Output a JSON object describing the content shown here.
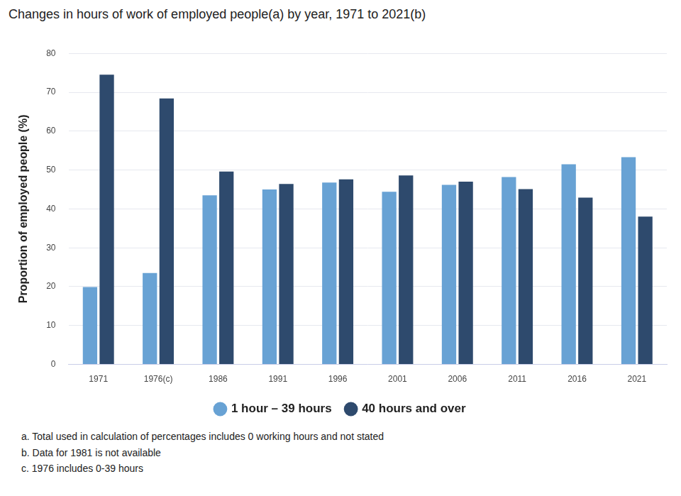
{
  "chart_data": {
    "type": "bar",
    "title": "Changes in hours of work of employed people(a) by year, 1971 to 2021(b)",
    "y_label": "Proportion of employed people (%)",
    "categories": [
      "1971",
      "1976(c)",
      "1986",
      "1991",
      "1996",
      "2001",
      "2006",
      "2011",
      "2016",
      "2021"
    ],
    "series": [
      {
        "name": "1 hour – 39 hours",
        "color": "#68a2d4",
        "values": [
          19.9,
          23.5,
          43.5,
          45.0,
          46.8,
          44.4,
          46.2,
          48.2,
          51.5,
          53.3
        ]
      },
      {
        "name": "40 hours and over",
        "color": "#2e4a6d",
        "values": [
          74.5,
          68.4,
          49.6,
          46.4,
          47.6,
          48.6,
          47.0,
          45.1,
          42.9,
          38.0
        ]
      }
    ],
    "ylim": [
      0,
      80
    ],
    "yticks": [
      0,
      10,
      20,
      30,
      40,
      50,
      60,
      70,
      80
    ],
    "grid": true,
    "legend": "bottom",
    "notes": [
      "a. Total used in calculation of percentages includes 0 working hours and not stated",
      "b. Data for 1981 is not available",
      "c. 1976 includes 0-39 hours"
    ]
  }
}
